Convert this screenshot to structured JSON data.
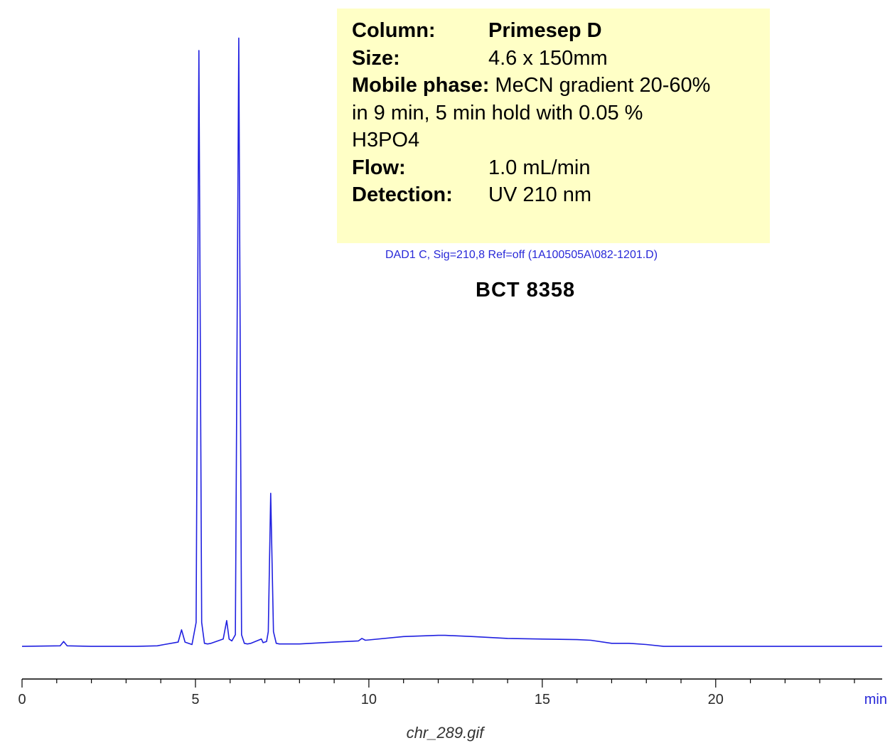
{
  "info": {
    "column_label": "Column:",
    "column_value": "Primesep D",
    "size_label": "Size:",
    "size_value": "4.6 x 150mm",
    "mobile_phase_label": "Mobile phase:",
    "mobile_phase_value_1": "MeCN gradient 20-60%",
    "mobile_phase_value_2": "in 9 min, 5 min hold with  0.05 %",
    "mobile_phase_value_3": "H3PO4",
    "flow_label": "Flow:",
    "flow_value": "1.0 mL/min",
    "detection_label": "Detection:",
    "detection_value": "UV 210 nm"
  },
  "signal_label": "DAD1 C, Sig=210,8 Ref=off (1A100505A\\082-1201.D)",
  "sample_title": "BCT  8358",
  "file_caption": "chr_289.gif",
  "colors": {
    "trace": "#2020e0",
    "info_box": "#ffffc6",
    "signal_label": "#2828d8",
    "axis": "#000000"
  },
  "chart_data": {
    "type": "line",
    "title": "BCT  8358",
    "xlabel": "min",
    "ylabel": "",
    "xlim": [
      0,
      24.8
    ],
    "ylim": [
      0,
      100
    ],
    "xticks": [
      0,
      5,
      10,
      15,
      20
    ],
    "xtick_labels": [
      "0",
      "5",
      "10",
      "15",
      "20"
    ],
    "grid": false,
    "series": [
      {
        "values_description_free": true,
        "x": [
          0,
          1.1,
          1.2,
          1.3,
          2.0,
          3.3,
          3.9,
          4.1,
          4.5,
          4.6,
          4.7,
          4.9,
          5.02,
          5.1,
          5.18,
          5.26,
          5.35,
          5.45,
          5.8,
          5.9,
          5.97,
          6.05,
          6.15,
          6.25,
          6.33,
          6.41,
          6.5,
          6.6,
          6.9,
          6.95,
          7.05,
          7.1,
          7.17,
          7.25,
          7.33,
          7.42,
          8.0,
          9.0,
          9.7,
          9.8,
          9.9,
          11.0,
          12.0,
          12.2,
          13.0,
          14.0,
          15.0,
          16.0,
          16.4,
          17.0,
          17.5,
          18.0,
          18.5,
          20.0,
          22.0,
          24.8
        ],
        "y": [
          0.1,
          0.2,
          0.9,
          0.2,
          0.1,
          0.1,
          0.2,
          0.4,
          0.8,
          2.8,
          0.8,
          0.4,
          4.0,
          97.0,
          4.0,
          0.6,
          0.5,
          0.6,
          1.3,
          4.3,
          1.3,
          1.0,
          2.0,
          99.0,
          2.0,
          0.6,
          0.5,
          0.6,
          1.3,
          0.7,
          0.9,
          2.5,
          25.0,
          2.5,
          0.6,
          0.5,
          0.5,
          0.8,
          1.0,
          1.4,
          1.1,
          1.7,
          1.9,
          1.9,
          1.7,
          1.4,
          1.3,
          1.2,
          1.1,
          0.6,
          0.6,
          0.4,
          0.1,
          0.1,
          0.1,
          0.1
        ]
      }
    ]
  }
}
